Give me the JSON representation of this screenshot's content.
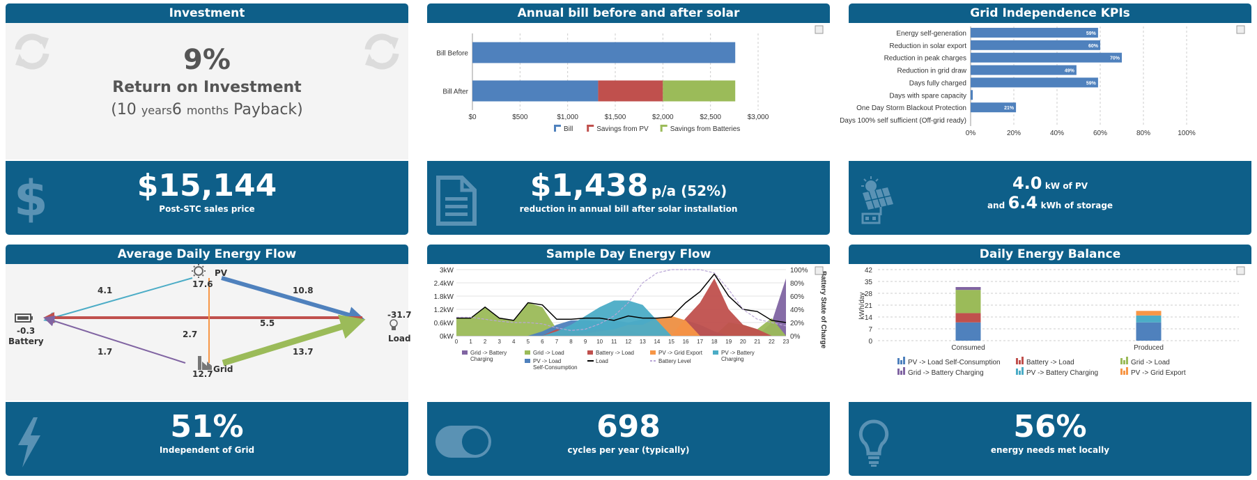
{
  "investment": {
    "title": "Investment",
    "roi_value": "9%",
    "roi_label": "Return on Investment",
    "payback_open": "(",
    "payback_years": "10",
    "payback_years_unit": "years",
    "payback_months": "6",
    "payback_months_unit": "months",
    "payback_label": "Payback)",
    "price_value": "$15,144",
    "price_label": "Post-STC sales price"
  },
  "annual_bill": {
    "title": "Annual bill before and after solar",
    "saving_value": "$1,438",
    "saving_unit": "p/a (52%)",
    "saving_label": "reduction in annual bill after solar installation",
    "colors": {
      "bill": "#4f81bd",
      "pv": "#c0504d",
      "batteries": "#9bbb59"
    }
  },
  "grid_kpis": {
    "title": "Grid Independence KPIs",
    "pv_value": "4.0",
    "pv_unit": "kW of PV",
    "storage_prefix": "and",
    "storage_value": "6.4",
    "storage_unit": "kWh of storage"
  },
  "energy_flow": {
    "title": "Average Daily Energy Flow",
    "nodes": {
      "pv": "PV",
      "pv_value": "17.6",
      "battery": "Battery",
      "battery_value": "-0.3",
      "load": "Load",
      "load_value": "-31.7",
      "grid": "Grid",
      "grid_value": "12.7"
    },
    "flows": {
      "pv_battery": "4.1",
      "pv_load": "10.8",
      "battery_load": "5.5",
      "pv_grid": "2.7",
      "grid_battery": "1.7",
      "grid_load": "13.7"
    },
    "independent_value": "51%",
    "independent_label": "Independent of Grid"
  },
  "sample_day": {
    "title": "Sample Day Energy Flow",
    "cycles_value": "698",
    "cycles_label": "cycles per year (typically)",
    "right_axis_title": "Battery State of Charge"
  },
  "daily_balance": {
    "title": "Daily Energy Balance",
    "local_value": "56%",
    "local_label": "energy needs met locally",
    "y_axis_title": "kWh/day"
  },
  "chart_data": [
    {
      "id": "annual_bill",
      "type": "bar",
      "orientation": "horizontal",
      "stacked": true,
      "categories": [
        "Bill Before",
        "Bill After"
      ],
      "series": [
        {
          "name": "Bill",
          "values": [
            2760,
            1320
          ],
          "color": "#4f81bd"
        },
        {
          "name": "Savings from PV",
          "values": [
            0,
            680
          ],
          "color": "#c0504d"
        },
        {
          "name": "Savings from Batteries",
          "values": [
            0,
            760
          ],
          "color": "#9bbb59"
        }
      ],
      "xlim": [
        0,
        3000
      ],
      "xticks": [
        "$0",
        "$500",
        "$1,000",
        "$1,500",
        "$2,000",
        "$2,500",
        "$3,000"
      ],
      "grid": true,
      "legend": "bottom"
    },
    {
      "id": "grid_kpis",
      "type": "bar",
      "orientation": "horizontal",
      "categories": [
        "Energy self-generation",
        "Reduction in solar export",
        "Reduction in peak charges",
        "Reduction in grid draw",
        "Days fully charged",
        "Days with spare capacity",
        "One Day Storm Blackout Protection",
        "Days 100% self sufficient (Off-grid ready)"
      ],
      "values": [
        59,
        60,
        70,
        49,
        59,
        1,
        21,
        0
      ],
      "labels": [
        "59%",
        "60%",
        "70%",
        "49%",
        "59%",
        "",
        "21%",
        ""
      ],
      "xlim": [
        0,
        100
      ],
      "xticks": [
        "0%",
        "20%",
        "40%",
        "60%",
        "80%",
        "100%"
      ],
      "color": "#4f81bd",
      "grid": true
    },
    {
      "id": "sample_day",
      "type": "area",
      "x": [
        0,
        1,
        2,
        3,
        4,
        5,
        6,
        7,
        8,
        9,
        10,
        11,
        12,
        13,
        14,
        15,
        16,
        17,
        18,
        19,
        20,
        21,
        22,
        23
      ],
      "yticks": [
        "0kW",
        "0.6kW",
        "1.2kW",
        "1.8kW",
        "2.4kW",
        "3kW"
      ],
      "ylim": [
        0,
        3
      ],
      "y2ticks": [
        "0%",
        "20%",
        "40%",
        "60%",
        "80%",
        "100%"
      ],
      "y2lim": [
        0,
        100
      ],
      "series": [
        {
          "name": "Grid -> Battery Charging",
          "color": "#8064a2",
          "values": [
            0,
            0,
            0,
            0,
            0,
            0,
            0,
            0,
            0,
            0,
            0,
            0,
            0,
            0,
            0,
            0,
            0,
            0,
            0,
            0,
            0,
            0,
            0.6,
            2.6
          ]
        },
        {
          "name": "Grid -> Load",
          "color": "#9bbb59",
          "values": [
            0.8,
            0.8,
            1.3,
            0.8,
            0.7,
            1.5,
            1.3,
            0.3,
            0,
            0,
            0,
            0,
            0,
            0,
            0,
            0,
            0,
            0,
            0,
            0.6,
            0.5,
            0.3,
            0.8,
            0
          ]
        },
        {
          "name": "PV -> Load Self-Consumption",
          "color": "#4f81bd",
          "values": [
            0,
            0,
            0,
            0,
            0,
            0,
            0.2,
            0.5,
            0.7,
            0.7,
            0.65,
            0.7,
            0.6,
            0.75,
            0.8,
            0.85,
            0.7,
            0.5,
            0.2,
            0,
            0,
            0,
            0,
            0
          ]
        },
        {
          "name": "Battery -> Load",
          "color": "#c0504d",
          "values": [
            0,
            0,
            0,
            0,
            0,
            0,
            0,
            0.3,
            0.2,
            0.2,
            0.3,
            0.2,
            0.3,
            0,
            0,
            0,
            0.8,
            1.5,
            2.6,
            1.2,
            0.5,
            0.3,
            0,
            0
          ]
        },
        {
          "name": "PV -> Grid Export",
          "color": "#f79646",
          "values": [
            0,
            0,
            0,
            0,
            0,
            0,
            0,
            0,
            0,
            0.1,
            0.2,
            0.3,
            0.5,
            0.5,
            0.8,
            0.9,
            0.7,
            0,
            0,
            0,
            0,
            0,
            0,
            0
          ]
        },
        {
          "name": "PV -> Battery Charging",
          "color": "#4bacc6",
          "values": [
            0,
            0,
            0,
            0,
            0,
            0,
            0,
            0.2,
            0.5,
            0.9,
            1.3,
            1.6,
            1.6,
            1.4,
            0.7,
            0,
            0,
            0,
            0,
            0,
            0,
            0,
            0,
            0
          ]
        }
      ],
      "line_load": {
        "name": "Load",
        "color": "#000000",
        "values": [
          0.8,
          0.8,
          1.3,
          0.8,
          0.7,
          1.5,
          1.4,
          0.75,
          0.75,
          0.8,
          0.8,
          0.7,
          0.9,
          0.8,
          0.8,
          0.85,
          1.5,
          2.0,
          2.8,
          1.8,
          1.2,
          1.1,
          0.7,
          0.6
        ]
      },
      "line_battery_level": {
        "name": "Battery Level",
        "color": "#b9a6d6",
        "values": [
          28,
          28,
          25,
          22,
          20,
          20,
          18,
          12,
          8,
          10,
          18,
          30,
          50,
          80,
          95,
          100,
          100,
          100,
          95,
          70,
          40,
          25,
          20,
          15
        ]
      },
      "legend": "bottom"
    },
    {
      "id": "daily_balance",
      "type": "bar",
      "stacked": true,
      "categories": [
        "Consumed",
        "Produced"
      ],
      "ylim": [
        0,
        42
      ],
      "yticks": [
        "0",
        "7",
        "14",
        "21",
        "28",
        "35",
        "42"
      ],
      "series": [
        {
          "name": "PV -> Load Self-Consumption",
          "color": "#4f81bd",
          "values": [
            10.8,
            10.8
          ]
        },
        {
          "name": "Battery -> Load",
          "color": "#c0504d",
          "values": [
            5.5,
            0
          ]
        },
        {
          "name": "Grid -> Load",
          "color": "#9bbb59",
          "values": [
            13.7,
            0
          ]
        },
        {
          "name": "Grid -> Battery Charging",
          "color": "#8064a2",
          "values": [
            1.7,
            0
          ]
        },
        {
          "name": "PV -> Battery Charging",
          "color": "#4bacc6",
          "values": [
            0,
            4.1
          ]
        },
        {
          "name": "PV -> Grid Export",
          "color": "#f79646",
          "values": [
            0,
            2.7
          ]
        }
      ],
      "grid": true,
      "legend": "bottom"
    }
  ]
}
